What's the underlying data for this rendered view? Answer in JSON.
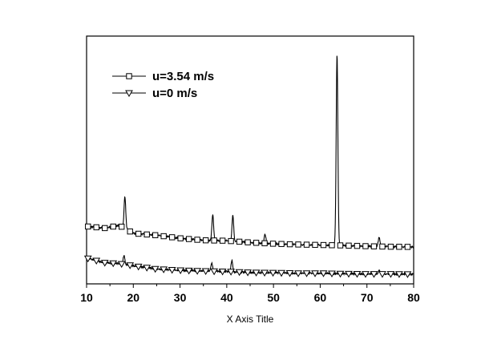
{
  "chart_data": {
    "type": "line",
    "title": "",
    "xlabel": "X Axis Title",
    "ylabel": "",
    "xlim": [
      10,
      80
    ],
    "ylim": [
      0,
      1
    ],
    "xticks": [
      10,
      20,
      30,
      40,
      50,
      60,
      70,
      80
    ],
    "y_axis_tick_labels": false,
    "grid": false,
    "legend_position": "top-left",
    "series": [
      {
        "name": "u=3.54 m/s",
        "marker": "square-open",
        "color": "#000000",
        "baseline": [
          [
            10,
            0.232
          ],
          [
            14,
            0.225
          ],
          [
            17,
            0.236
          ],
          [
            20,
            0.204
          ],
          [
            25,
            0.196
          ],
          [
            30,
            0.184
          ],
          [
            35,
            0.176
          ],
          [
            40,
            0.174
          ],
          [
            45,
            0.167
          ],
          [
            50,
            0.162
          ],
          [
            55,
            0.159
          ],
          [
            60,
            0.157
          ],
          [
            65,
            0.155
          ],
          [
            70,
            0.152
          ],
          [
            75,
            0.15
          ],
          [
            80,
            0.149
          ]
        ],
        "peaks": [
          {
            "x": 18.2,
            "y": 0.353
          },
          {
            "x": 37.0,
            "y": 0.279
          },
          {
            "x": 41.3,
            "y": 0.277
          },
          {
            "x": 48.2,
            "y": 0.2
          },
          {
            "x": 63.6,
            "y": 0.926
          },
          {
            "x": 72.6,
            "y": 0.188
          }
        ]
      },
      {
        "name": "u=0 m/s",
        "marker": "triangle-down-open",
        "color": "#000000",
        "baseline": [
          [
            10,
            0.104
          ],
          [
            14,
            0.085
          ],
          [
            17,
            0.082
          ],
          [
            20,
            0.073
          ],
          [
            25,
            0.06
          ],
          [
            30,
            0.055
          ],
          [
            35,
            0.052
          ],
          [
            40,
            0.05
          ],
          [
            45,
            0.046
          ],
          [
            50,
            0.045
          ],
          [
            55,
            0.043
          ],
          [
            60,
            0.043
          ],
          [
            65,
            0.041
          ],
          [
            70,
            0.04
          ],
          [
            75,
            0.04
          ],
          [
            80,
            0.039
          ]
        ],
        "peaks": [
          {
            "x": 18.0,
            "y": 0.114
          },
          {
            "x": 36.8,
            "y": 0.084
          },
          {
            "x": 41.1,
            "y": 0.094
          },
          {
            "x": 72.6,
            "y": 0.055
          }
        ]
      }
    ]
  }
}
